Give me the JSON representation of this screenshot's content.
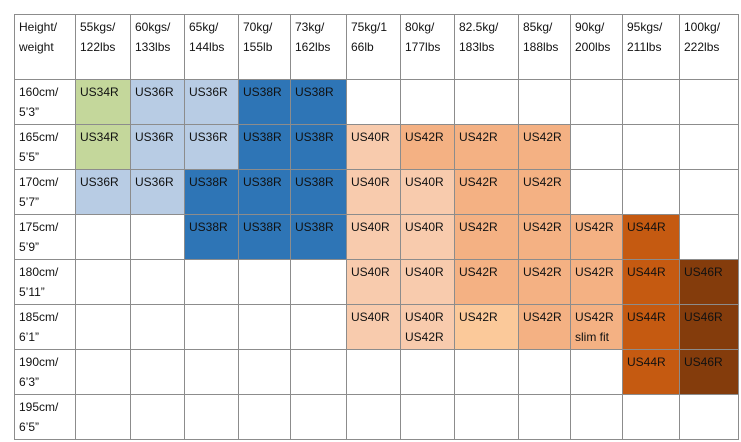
{
  "table": {
    "header": [
      [
        "Height/",
        "weight"
      ],
      [
        "55kgs/",
        "122lbs"
      ],
      [
        "60kgs/",
        "133lbs"
      ],
      [
        "65kg/",
        "144lbs"
      ],
      [
        "70kg/",
        "155lb"
      ],
      [
        "73kg/",
        "162lbs"
      ],
      [
        "75kg/1",
        "66lb"
      ],
      [
        "80kg/",
        "177lbs"
      ],
      [
        "82.5kg/",
        "183lbs"
      ],
      [
        "85kg/",
        "188lbs"
      ],
      [
        "90kg/",
        "200lbs"
      ],
      [
        "95kgs/",
        "211lbs"
      ],
      [
        "100kg/",
        "222lbs"
      ]
    ],
    "rows": [
      [
        [
          "160cm/",
          "5’3”"
        ],
        [
          "US34R"
        ],
        [
          "US36R"
        ],
        [
          "US36R"
        ],
        [
          "US38R"
        ],
        [
          "US38R"
        ],
        [],
        [],
        [],
        [],
        [],
        [],
        []
      ],
      [
        [
          "165cm/",
          "5’5”"
        ],
        [
          "US34R"
        ],
        [
          "US36R"
        ],
        [
          "US36R"
        ],
        [
          "US38R"
        ],
        [
          "US38R"
        ],
        [
          "US40R"
        ],
        [
          "US42R"
        ],
        [
          "US42R"
        ],
        [
          "US42R"
        ],
        [],
        [],
        []
      ],
      [
        [
          "170cm/",
          "5’7”"
        ],
        [
          "US36R"
        ],
        [
          "US36R"
        ],
        [
          "US38R"
        ],
        [
          "US38R"
        ],
        [
          "US38R"
        ],
        [
          "US40R"
        ],
        [
          "US40R"
        ],
        [
          "US42R"
        ],
        [
          "US42R"
        ],
        [],
        [],
        []
      ],
      [
        [
          "175cm/",
          "5’9”"
        ],
        [],
        [],
        [
          "US38R"
        ],
        [
          "US38R"
        ],
        [
          "US38R"
        ],
        [
          "US40R"
        ],
        [
          "US40R"
        ],
        [
          "US42R"
        ],
        [
          "US42R"
        ],
        [
          "US42R"
        ],
        [
          "US44R"
        ],
        []
      ],
      [
        [
          "180cm/",
          "5’11”"
        ],
        [],
        [],
        [],
        [],
        [],
        [
          "US40R"
        ],
        [
          "US40R"
        ],
        [
          "US42R"
        ],
        [
          "US42R"
        ],
        [
          "US42R"
        ],
        [
          "US44R"
        ],
        [
          "US46R"
        ]
      ],
      [
        [
          "185cm/",
          "6’1”"
        ],
        [],
        [],
        [],
        [],
        [],
        [
          "US40R"
        ],
        [
          "US40R",
          "US42R"
        ],
        [
          "US42R"
        ],
        [
          "US42R"
        ],
        [
          "US42R",
          "slim fit"
        ],
        [
          "US44R"
        ],
        [
          "US46R"
        ]
      ],
      [
        [
          "190cm/",
          "6’3”"
        ],
        [],
        [],
        [],
        [],
        [],
        [],
        [],
        [],
        [],
        [],
        [
          "US44R"
        ],
        [
          "US46R"
        ]
      ],
      [
        [
          "195cm/",
          "6’5”"
        ],
        [],
        [],
        [],
        [],
        [],
        [],
        [],
        [],
        [],
        [],
        [],
        []
      ]
    ],
    "fills": [
      [
        null,
        "#c4d79b",
        "#b8cce4",
        "#b8cce4",
        "#2e75b6",
        "#2e75b6",
        null,
        null,
        null,
        null,
        null,
        null,
        null
      ],
      [
        null,
        "#c4d79b",
        "#b8cce4",
        "#b8cce4",
        "#2e75b6",
        "#2e75b6",
        "#f8cbad",
        "#f4b183",
        "#f4b183",
        "#f4b183",
        null,
        null,
        null
      ],
      [
        null,
        "#b8cce4",
        "#b8cce4",
        "#2e75b6",
        "#2e75b6",
        "#2e75b6",
        "#f8cbad",
        "#f8cbad",
        "#f4b183",
        "#f4b183",
        null,
        null,
        null
      ],
      [
        null,
        null,
        null,
        "#2e75b6",
        "#2e75b6",
        "#2e75b6",
        "#f8cbad",
        "#f8cbad",
        "#f4b183",
        "#f4b183",
        "#f4b183",
        "#c55a11",
        null
      ],
      [
        null,
        null,
        null,
        null,
        null,
        null,
        "#f8cbad",
        "#f8cbad",
        "#f4b183",
        "#f4b183",
        "#f4b183",
        "#c55a11",
        "#843c0c"
      ],
      [
        null,
        null,
        null,
        null,
        null,
        null,
        "#f8cbad",
        "#f8cbad",
        "#fbc99a",
        "#f4b183",
        "#f4b183",
        "#c55a11",
        "#843c0c"
      ],
      [
        null,
        null,
        null,
        null,
        null,
        null,
        null,
        null,
        null,
        null,
        null,
        "#c55a11",
        "#843c0c"
      ],
      [
        null,
        null,
        null,
        null,
        null,
        null,
        null,
        null,
        null,
        null,
        null,
        null,
        null
      ]
    ]
  }
}
